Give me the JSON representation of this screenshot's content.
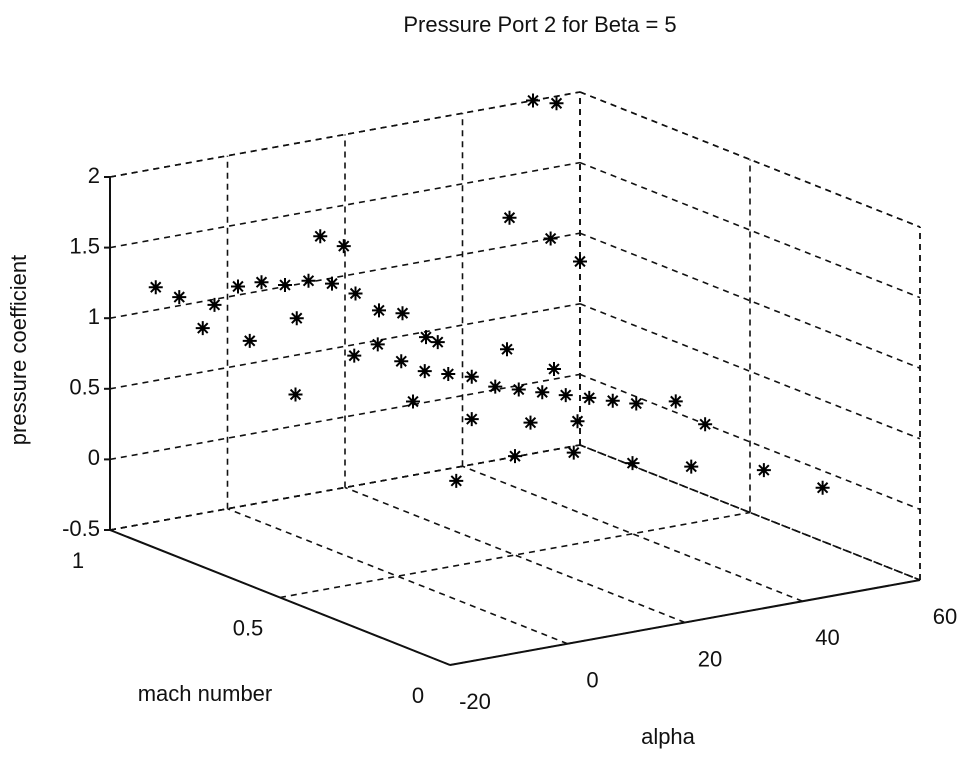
{
  "chart_data": {
    "type": "scatter3d",
    "title": "Pressure Port 2 for Beta = 5",
    "xlabel": "alpha",
    "ylabel": "mach number",
    "zlabel": "pressure coefficient",
    "x": [
      -18,
      -14,
      -8,
      -4,
      0,
      4,
      8,
      12,
      16,
      -10,
      -2,
      6,
      10,
      14,
      20,
      24,
      28,
      30,
      0,
      10,
      14,
      18,
      22,
      26,
      30,
      34,
      38,
      42,
      46,
      50,
      54,
      58,
      20,
      30,
      40,
      48,
      36,
      44,
      10,
      20,
      30,
      40,
      50,
      30,
      35,
      45,
      55,
      52,
      56,
      48,
      55,
      60
    ],
    "y": [
      0.9,
      0.9,
      0.9,
      0.9,
      0.9,
      0.9,
      0.9,
      0.9,
      0.9,
      0.9,
      0.9,
      0.9,
      0.9,
      0.9,
      0.9,
      0.9,
      0.9,
      0.9,
      0.8,
      0.8,
      0.8,
      0.8,
      0.8,
      0.8,
      0.8,
      0.8,
      0.8,
      0.8,
      0.8,
      0.8,
      0.8,
      0.8,
      0.8,
      0.8,
      0.8,
      0.8,
      0.8,
      0.8,
      0.5,
      0.5,
      0.5,
      0.5,
      0.5,
      0.2,
      0.2,
      0.2,
      0.2,
      1,
      1,
      1,
      1,
      1
    ],
    "z": [
      1.3,
      1.2,
      1.1,
      1.2,
      1.2,
      1.15,
      1.15,
      1.1,
      1.0,
      0.95,
      0.8,
      0.9,
      1.45,
      1.35,
      0.85,
      0.8,
      0.6,
      0.55,
      0.5,
      0.7,
      0.75,
      0.6,
      0.5,
      0.45,
      0.4,
      0.3,
      0.25,
      0.2,
      0.15,
      0.1,
      0.05,
      0.0,
      0.3,
      0.1,
      0.0,
      -0.05,
      0.55,
      0.35,
      0.1,
      0.2,
      0.15,
      0.0,
      -0.1,
      0.8,
      0.6,
      0.2,
      0.0,
      2.0,
      1.95,
      1.2,
      1.0,
      0.8
    ],
    "xlim": [
      -20,
      60
    ],
    "ylim": [
      0,
      1
    ],
    "zlim": [
      -0.5,
      2
    ],
    "xticks": [
      -20,
      0,
      20,
      40,
      60
    ],
    "yticks": [
      0,
      0.5,
      1
    ],
    "zticks": [
      -0.5,
      0,
      0.5,
      1,
      1.5,
      2
    ],
    "grid": true,
    "color": "#000000"
  }
}
